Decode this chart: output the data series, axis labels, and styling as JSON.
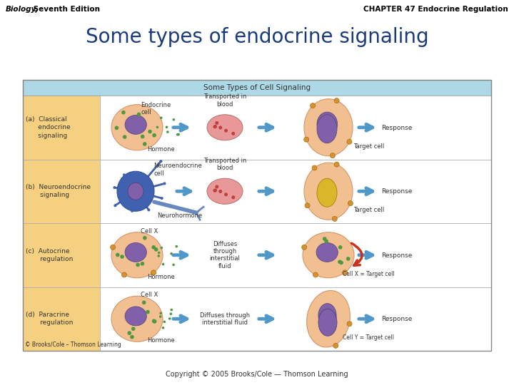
{
  "top_left_italic": "Biology,",
  "top_left_normal": " Seventh Edition",
  "top_right_text": "CHAPTER 47 Endocrine Regulation",
  "main_title": "Some types of endocrine signaling",
  "copyright_text": "Copyright © 2005 Brooks/Cole — Thomson Learning",
  "table_header": "Some Types of Cell Signaling",
  "bg": "#ffffff",
  "header_bg": "#add8e6",
  "left_col_bg": "#f5d080",
  "row_labels": [
    "(a)  Classical\n      endocrine\n      signaling",
    "(b)  Neuroendocrine\n       signaling",
    "(c)  Autocrine\n       regulation",
    "(d)  Paracrine\n       regulation"
  ],
  "cell_peach": "#f2c090",
  "cell_peach_edge": "#d4956a",
  "nucleus_purple": "#8060a8",
  "nucleus_yellow": "#d8b828",
  "green_dot": "#509840",
  "orange_dot": "#d89030",
  "neuron_blue": "#4060b0",
  "blood_pink": "#e89898",
  "blood_red": "#c04040",
  "arrow_blue": "#5098c8",
  "arrow_red": "#c83020",
  "copyright_bottom": "© Brooks/Cole – Thomson Learning",
  "title_color": "#1a3a7a",
  "text_color": "#333333"
}
